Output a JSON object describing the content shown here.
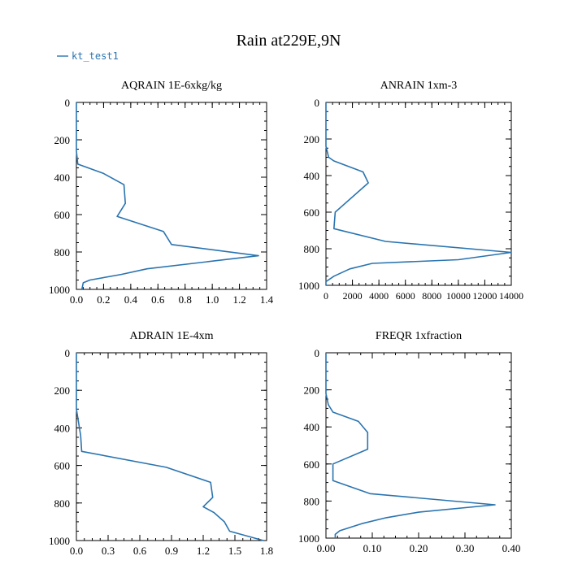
{
  "figure": {
    "title": "Rain at229E,9N",
    "legend": {
      "label": "kt_test1"
    },
    "series_color": "#2a74b0"
  },
  "chart_data": [
    {
      "type": "line",
      "title": "AQRAIN  1E-6xkg/kg",
      "xlim": [
        0,
        1.4
      ],
      "ylim": [
        1000,
        0
      ],
      "xticks": [
        0,
        0.2,
        0.4,
        0.6,
        0.8,
        1.0,
        1.2,
        1.4
      ],
      "xtick_labels": [
        "0.0",
        "0.2",
        "0.4",
        "0.6",
        "0.8",
        "1.0",
        "1.2",
        "1.4"
      ],
      "yticks": [
        0,
        200,
        400,
        600,
        800,
        1000
      ],
      "ytick_labels": [
        "0",
        "200",
        "400",
        "600",
        "800",
        "1000"
      ],
      "series": [
        {
          "name": "kt_test1",
          "x": [
            0,
            0,
            0.01,
            0.2,
            0.35,
            0.36,
            0.3,
            0.64,
            0.7,
            1.34,
            0.52,
            0.33,
            0.1,
            0.05,
            0.04
          ],
          "y": [
            0,
            260,
            330,
            380,
            440,
            540,
            610,
            690,
            760,
            820,
            890,
            920,
            950,
            965,
            1000
          ]
        }
      ]
    },
    {
      "type": "line",
      "title": "ANRAIN  1xm-3",
      "xlim": [
        0,
        14000
      ],
      "ylim": [
        1000,
        0
      ],
      "xticks": [
        0,
        2000,
        4000,
        6000,
        8000,
        10000,
        12000,
        14000
      ],
      "xtick_labels": [
        "0",
        "2000",
        "4000",
        "6000",
        "8000",
        "10000",
        "12000",
        "14000"
      ],
      "yticks": [
        0,
        200,
        400,
        600,
        800,
        1000
      ],
      "ytick_labels": [
        "0",
        "200",
        "400",
        "600",
        "800",
        "1000"
      ],
      "series": [
        {
          "name": "kt_test1",
          "x": [
            0,
            0,
            200,
            600,
            2800,
            3200,
            700,
            600,
            4500,
            14000,
            10000,
            3500,
            1800,
            600,
            0,
            0
          ],
          "y": [
            0,
            240,
            300,
            320,
            380,
            440,
            600,
            690,
            760,
            820,
            860,
            880,
            910,
            950,
            980,
            1000
          ]
        }
      ]
    },
    {
      "type": "line",
      "title": "ADRAIN  1E-4xm",
      "xlim": [
        0,
        1.8
      ],
      "ylim": [
        1000,
        0
      ],
      "xticks": [
        0,
        0.3,
        0.6,
        0.9,
        1.2,
        1.5,
        1.8
      ],
      "xtick_labels": [
        "0.0",
        "0.3",
        "0.6",
        "0.9",
        "1.2",
        "1.5",
        "1.8"
      ],
      "yticks": [
        0,
        200,
        400,
        600,
        800,
        1000
      ],
      "ytick_labels": [
        "0",
        "200",
        "400",
        "600",
        "800",
        "1000"
      ],
      "series": [
        {
          "name": "kt_test1",
          "x": [
            0,
            0,
            0.04,
            0.05,
            0.85,
            1.27,
            1.29,
            1.2,
            1.3,
            1.4,
            1.45,
            1.77
          ],
          "y": [
            0,
            300,
            440,
            525,
            610,
            690,
            770,
            820,
            850,
            900,
            950,
            1000
          ]
        }
      ]
    },
    {
      "type": "line",
      "title": "FREQR  1xfraction",
      "xlim": [
        0,
        0.4
      ],
      "ylim": [
        1000,
        0
      ],
      "xticks": [
        0,
        0.1,
        0.2,
        0.3,
        0.4
      ],
      "xtick_labels": [
        "0.00",
        "0.10",
        "0.20",
        "0.30",
        "0.40"
      ],
      "yticks": [
        0,
        200,
        400,
        600,
        800,
        1000
      ],
      "ytick_labels": [
        "0",
        "200",
        "400",
        "600",
        "800",
        "1000"
      ],
      "series": [
        {
          "name": "kt_test1",
          "x": [
            0,
            0,
            0.005,
            0.015,
            0.07,
            0.09,
            0.09,
            0.015,
            0.015,
            0.095,
            0.365,
            0.2,
            0.13,
            0.08,
            0.03,
            0.02,
            0.02
          ],
          "y": [
            0,
            220,
            280,
            320,
            370,
            430,
            520,
            600,
            690,
            760,
            820,
            860,
            890,
            920,
            960,
            980,
            1000
          ]
        }
      ]
    }
  ]
}
